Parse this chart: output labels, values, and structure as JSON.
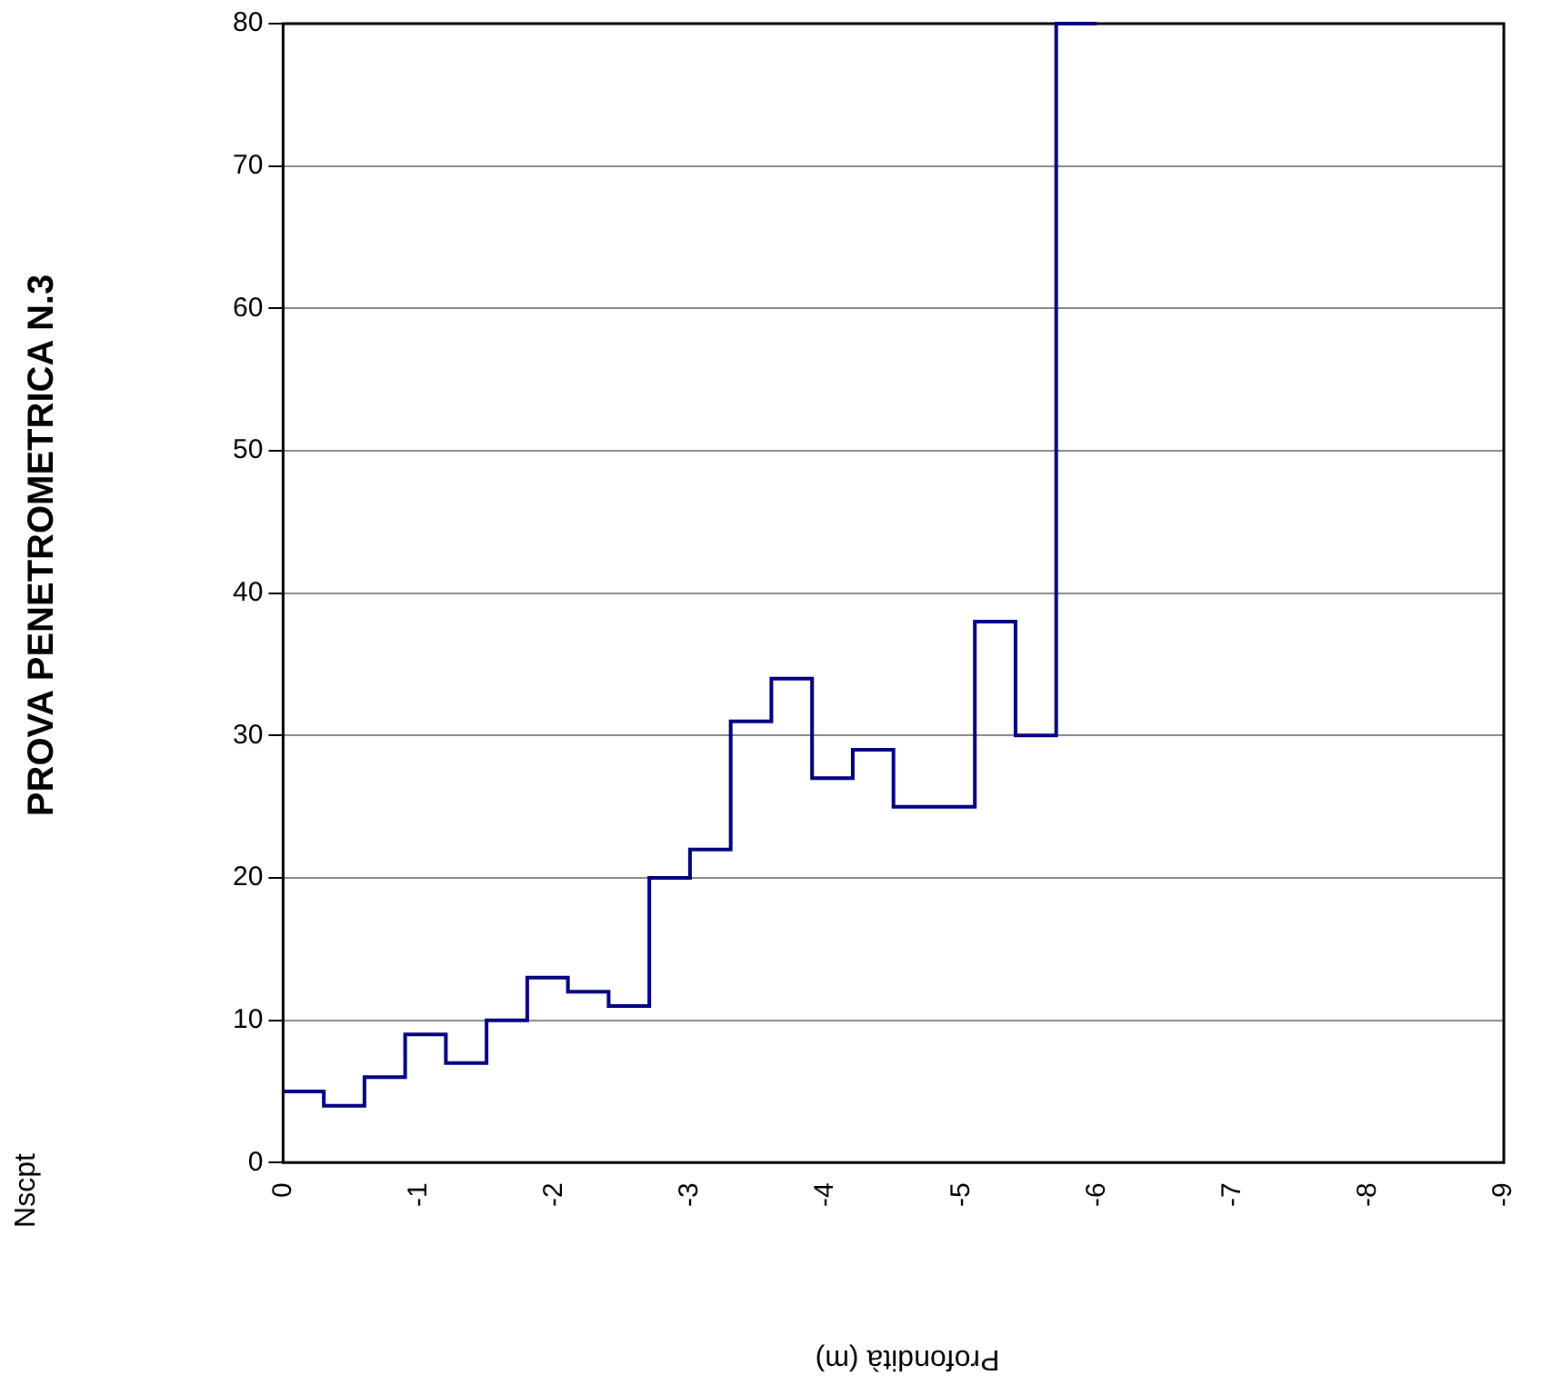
{
  "chart_data": {
    "type": "step",
    "title": "PROVA PENETROMETRICA N.3",
    "xlabel": "Profondità (m)",
    "annotations": [
      "Nscpt"
    ],
    "x": [
      0,
      -0.3,
      -0.6,
      -0.9,
      -1.2,
      -1.5,
      -1.8,
      -2.1,
      -2.4,
      -2.7,
      -3.0,
      -3.3,
      -3.6,
      -3.9,
      -4.2,
      -4.5,
      -4.8,
      -5.1,
      -5.4,
      -5.7,
      -6.0
    ],
    "series": [
      {
        "color": "#000080",
        "values": [
          5,
          4,
          6,
          9,
          7,
          10,
          13,
          12,
          11,
          20,
          22,
          31,
          34,
          27,
          29,
          25,
          25,
          38,
          30,
          80,
          80
        ]
      }
    ],
    "xlim": [
      0,
      -9
    ],
    "xticks": [
      0,
      -1,
      -2,
      -3,
      -4,
      -5,
      -6,
      -7,
      -8,
      -9
    ],
    "ylim": [
      0,
      80
    ],
    "yticks": [
      0,
      10,
      20,
      30,
      40,
      50,
      60,
      70,
      80
    ],
    "grid": "y",
    "legend": false,
    "marker": "none",
    "line_style": "solid"
  }
}
